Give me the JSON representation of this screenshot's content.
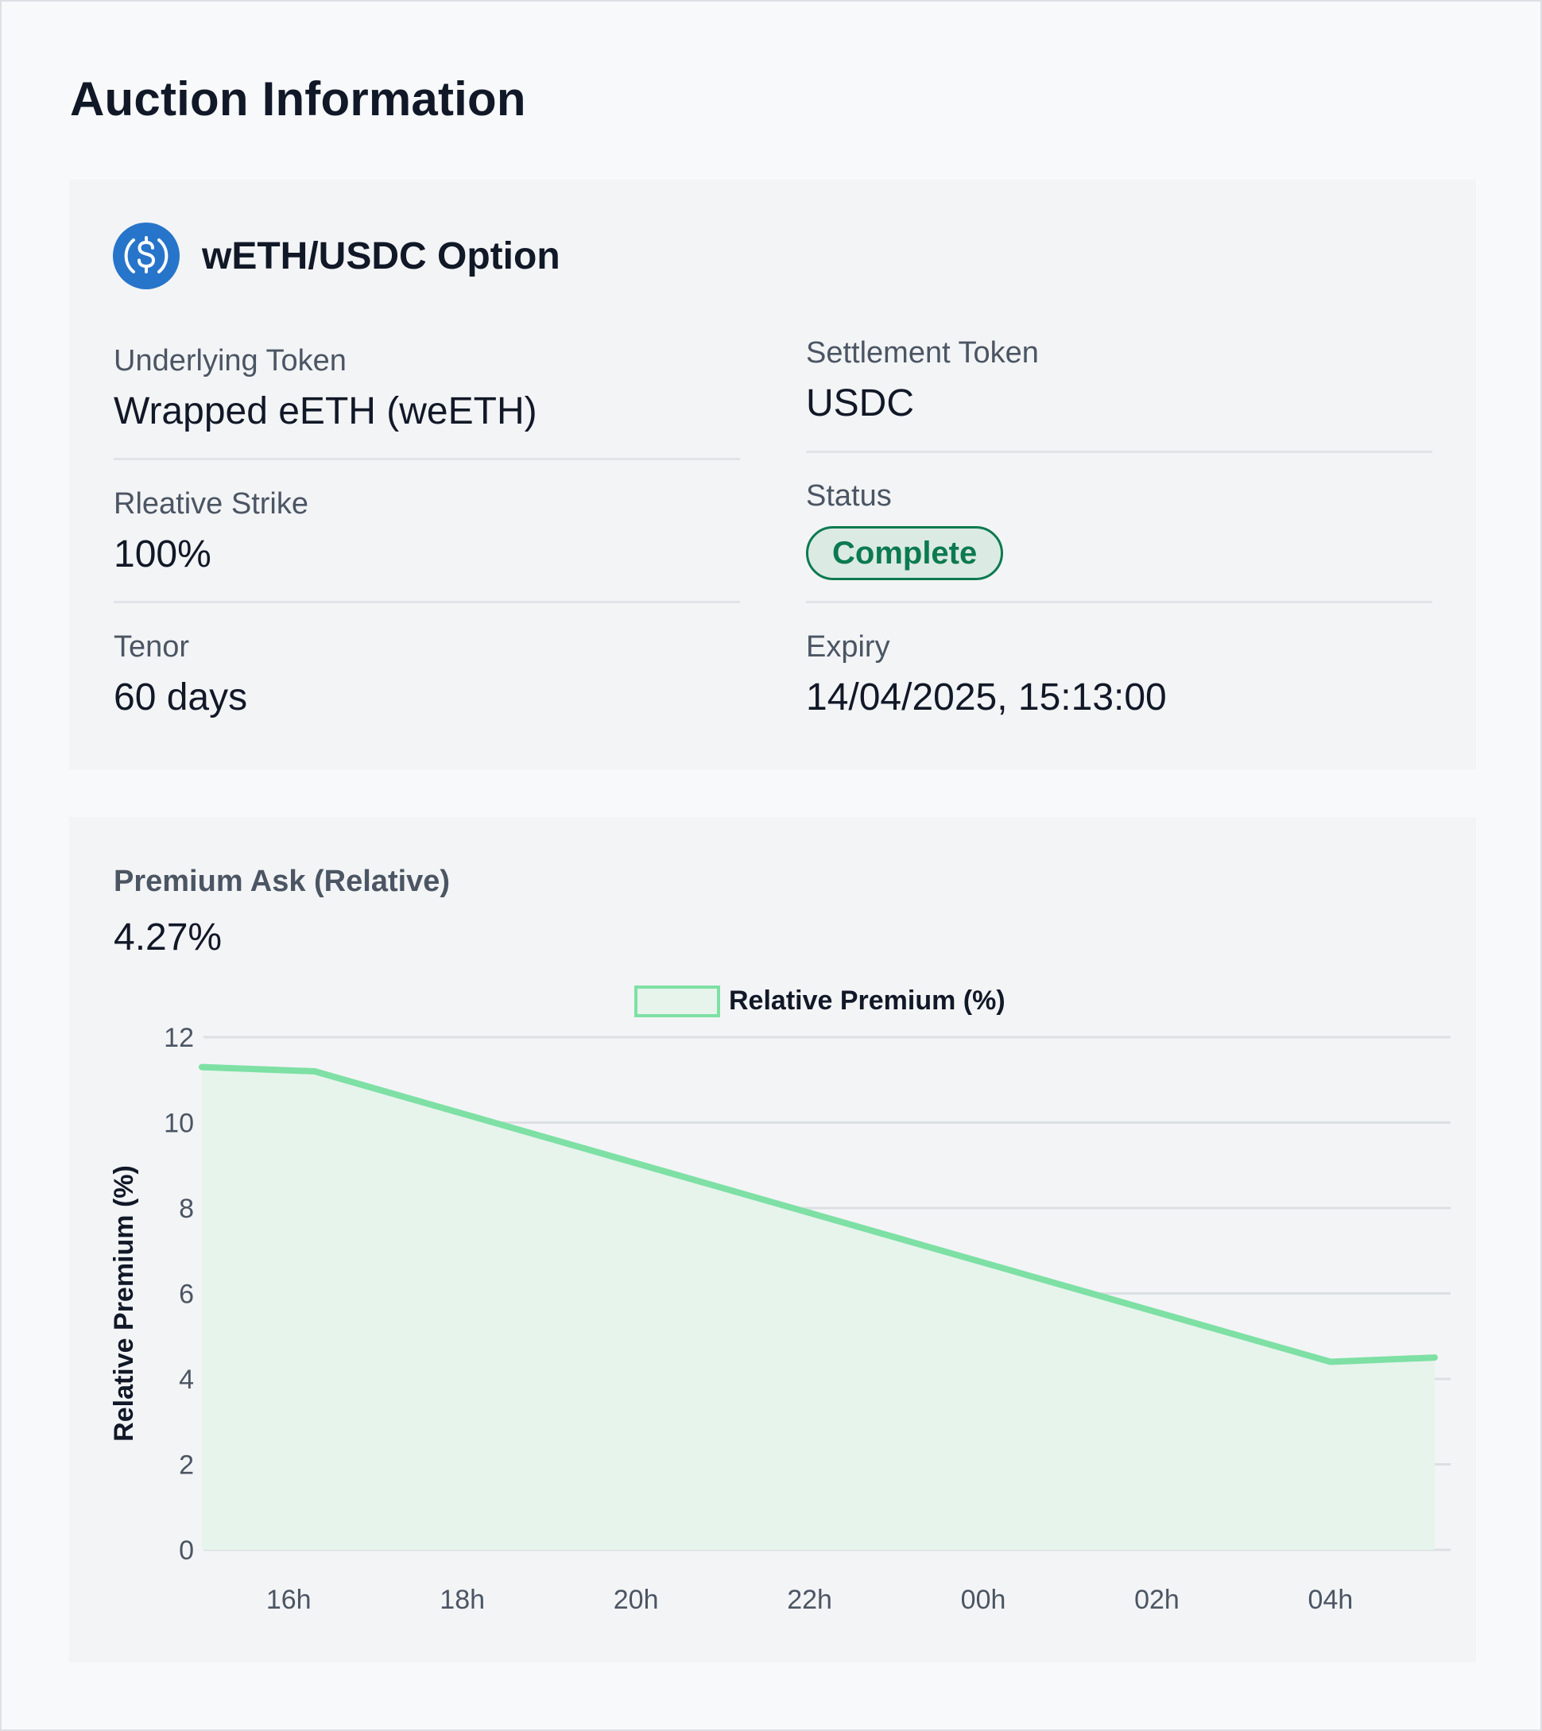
{
  "page": {
    "title": "Auction Information"
  },
  "option": {
    "title": "wETH/USDC Option",
    "icon": "usdc-coin-icon",
    "fields": {
      "underlying_label": "Underlying Token",
      "underlying_value": "Wrapped eETH (weETH)",
      "settlement_label": "Settlement Token",
      "settlement_value": "USDC",
      "strike_label": "Rleative Strike",
      "strike_value": "100%",
      "status_label": "Status",
      "status_value": "Complete",
      "tenor_label": "Tenor",
      "tenor_value": "60 days",
      "expiry_label": "Expiry",
      "expiry_value": "14/04/2025, 15:13:00"
    },
    "colors": {
      "accent": "#2775ca",
      "status": "#0b7a4f"
    }
  },
  "premium": {
    "label": "Premium Ask (Relative)",
    "value": "4.27%"
  },
  "chart_data": {
    "type": "area",
    "title": "",
    "xlabel": "",
    "ylabel": "Relative Premium (%)",
    "ylim": [
      0,
      12
    ],
    "yticks": [
      "0",
      "2",
      "4",
      "6",
      "8",
      "10",
      "12"
    ],
    "xlim": [
      15.0,
      29.2
    ],
    "xtick_values": [
      16,
      18,
      20,
      22,
      24,
      26,
      28
    ],
    "xticks": [
      "16h",
      "18h",
      "20h",
      "22h",
      "00h",
      "02h",
      "04h"
    ],
    "legend_position": "top-center",
    "grid": true,
    "series": [
      {
        "name": "Relative Premium (%)",
        "color": "#7ee0a4",
        "fill": "#e6f4ec",
        "x": [
          15.0,
          16.3,
          28.0,
          29.2
        ],
        "y": [
          11.3,
          11.2,
          4.4,
          4.5
        ]
      }
    ]
  }
}
